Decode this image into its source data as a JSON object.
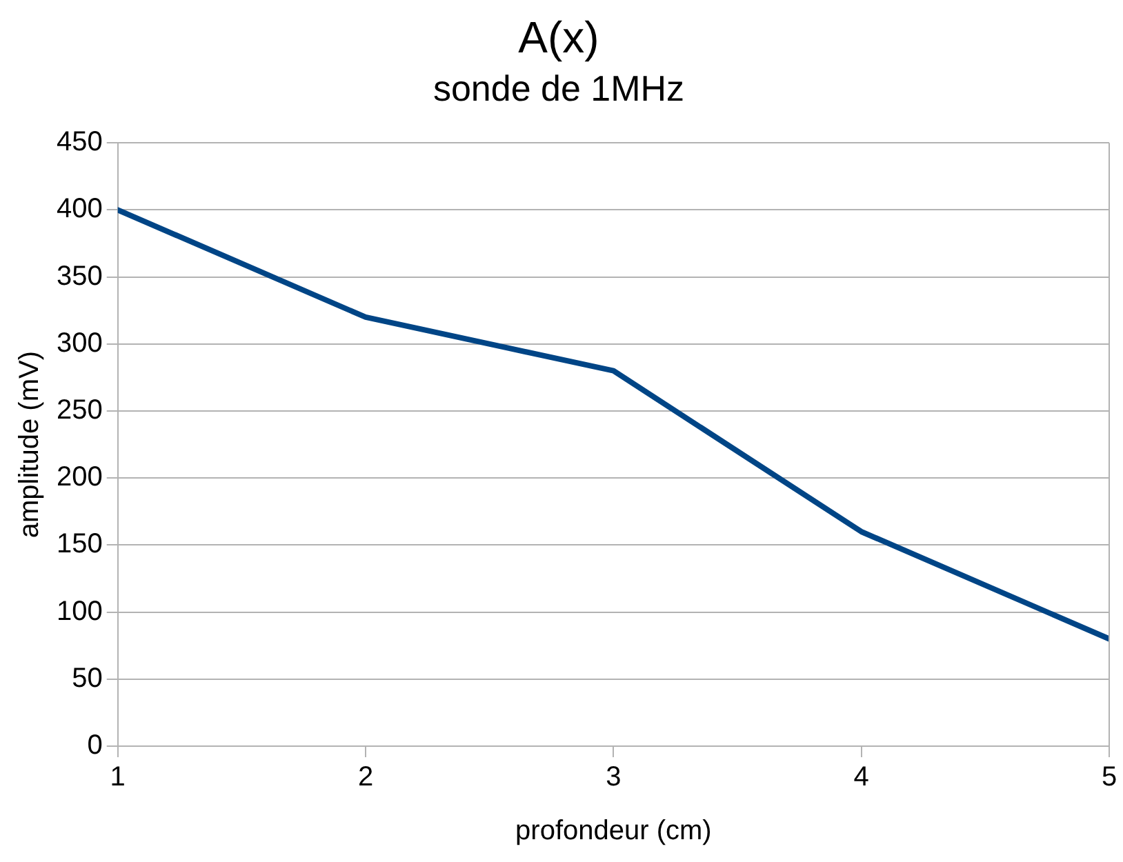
{
  "chart_data": {
    "type": "line",
    "title": "A(x)",
    "subtitle": "sonde de 1MHz",
    "xlabel": "profondeur (cm)",
    "ylabel": "amplitude (mV)",
    "x": [
      1,
      2,
      3,
      4,
      5
    ],
    "series": [
      {
        "color": "#004586",
        "values": [
          400,
          320,
          280,
          160,
          80
        ]
      }
    ],
    "xlim": [
      1,
      5
    ],
    "xticks": [
      1,
      2,
      3,
      4,
      5
    ],
    "ylim": [
      0,
      450
    ],
    "yticks": [
      0,
      50,
      100,
      150,
      200,
      250,
      300,
      350,
      400,
      450
    ],
    "grid": "y",
    "legend": false,
    "marker": "none",
    "line_style": "solid"
  }
}
